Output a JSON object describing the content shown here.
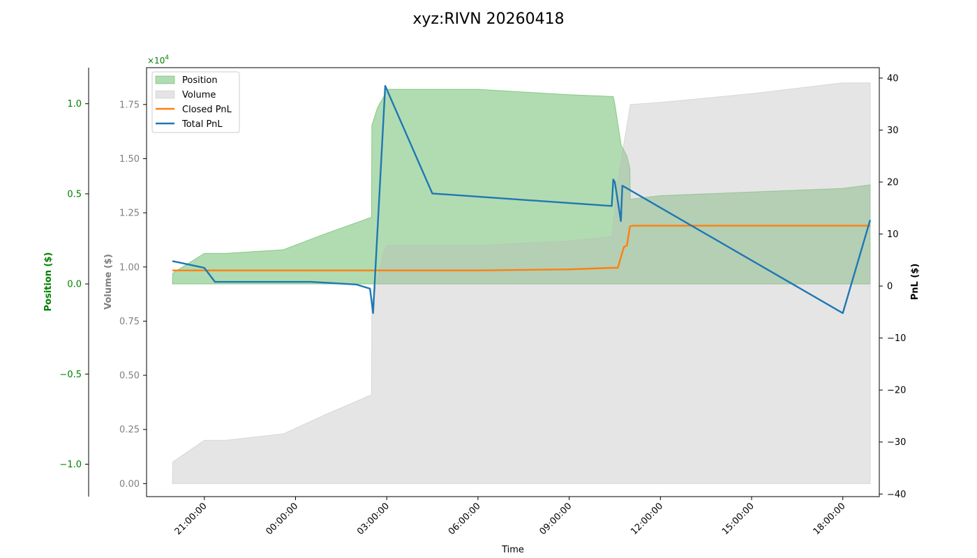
{
  "chart_data": {
    "type": "area",
    "title": "xyz:RIVN 20260418",
    "xlabel": "Time",
    "x_ticks": [
      "21:00:00",
      "00:00:00",
      "03:00:00",
      "06:00:00",
      "09:00:00",
      "12:00:00",
      "15:00:00",
      "18:00:00"
    ],
    "x_tick_hours": [
      21,
      24,
      27,
      30,
      33,
      36,
      39,
      42
    ],
    "x_range_hours": [
      19.1,
      43.2
    ],
    "axes": {
      "position": {
        "label": "Position ($)",
        "color": "#008000",
        "range": [
          -1.18,
          1.2
        ],
        "ticks": [
          -1.0,
          -0.5,
          0.0,
          0.5,
          1.0
        ],
        "tick_labels": [
          "−1.0",
          "−0.5",
          "0.0",
          "0.5",
          "1.0"
        ],
        "multiplier_label": "×10",
        "multiplier_exponent": "4"
      },
      "volume": {
        "label": "Volume ($)",
        "color": "#808080",
        "range": [
          -0.06,
          1.92
        ],
        "ticks": [
          0.0,
          0.25,
          0.5,
          0.75,
          1.0,
          1.25,
          1.5,
          1.75
        ],
        "tick_labels": [
          "0.00",
          "0.25",
          "0.50",
          "0.75",
          "1.00",
          "1.25",
          "1.50",
          "1.75"
        ]
      },
      "pnl": {
        "label": "PnL ($)",
        "color": "#000000",
        "range": [
          -40.5,
          42.0
        ],
        "ticks": [
          -40,
          -30,
          -20,
          -10,
          0,
          10,
          20,
          30,
          40
        ],
        "tick_labels": [
          "−40",
          "−30",
          "−20",
          "−10",
          "0",
          "10",
          "20",
          "30",
          "40"
        ]
      }
    },
    "legend": {
      "placement": "top-left",
      "entries": [
        "Position",
        "Volume",
        "Closed PnL",
        "Total PnL"
      ]
    },
    "series": [
      {
        "name": "Position",
        "kind": "area",
        "axis": "position",
        "color": "#2ca02c",
        "x": [
          19.95,
          19.96,
          21.0,
          21.7,
          23.6,
          25.0,
          26.0,
          26.5,
          26.51,
          26.7,
          27.0,
          27.02,
          30.0,
          33.0,
          34.4,
          34.45,
          34.5,
          34.7,
          34.71,
          34.9,
          35.0,
          35.01,
          36.0,
          39.0,
          42.0,
          42.9
        ],
        "values": [
          0.0,
          0.06,
          0.17,
          0.17,
          0.19,
          0.28,
          0.34,
          0.37,
          0.88,
          0.98,
          1.07,
          1.08,
          1.08,
          1.05,
          1.04,
          1.04,
          1.0,
          0.78,
          0.77,
          0.71,
          0.64,
          0.47,
          0.49,
          0.51,
          0.53,
          0.55
        ]
      },
      {
        "name": "Volume",
        "kind": "area",
        "axis": "volume",
        "color": "#bbbbbb",
        "x": [
          19.95,
          19.96,
          21.0,
          21.7,
          23.6,
          25.0,
          26.0,
          26.5,
          26.51,
          26.9,
          27.02,
          30.0,
          33.0,
          34.4,
          34.6,
          35.01,
          36.0,
          39.0,
          42.0,
          42.9
        ],
        "values": [
          0.0,
          0.1,
          0.2,
          0.2,
          0.23,
          0.32,
          0.38,
          0.41,
          0.83,
          1.07,
          1.1,
          1.1,
          1.12,
          1.14,
          1.4,
          1.75,
          1.76,
          1.8,
          1.85,
          1.85
        ]
      },
      {
        "name": "Closed PnL",
        "kind": "line",
        "axis": "pnl",
        "color": "#ff7f0e",
        "x": [
          19.95,
          24.0,
          27.0,
          30.0,
          33.0,
          34.4,
          34.6,
          34.8,
          34.9,
          35.0,
          35.1,
          39.0,
          42.9
        ],
        "values": [
          3.0,
          3.0,
          3.0,
          3.0,
          3.2,
          3.5,
          3.5,
          7.5,
          7.8,
          11.5,
          11.6,
          11.6,
          11.6
        ]
      },
      {
        "name": "Total PnL",
        "kind": "line",
        "axis": "pnl",
        "color": "#1f77b4",
        "x": [
          19.95,
          21.0,
          21.35,
          24.5,
          26.0,
          26.45,
          26.55,
          26.95,
          28.5,
          34.4,
          34.45,
          34.5,
          34.7,
          34.75,
          42.0,
          42.9
        ],
        "values": [
          4.8,
          3.5,
          0.8,
          0.8,
          0.3,
          -0.5,
          -5.2,
          38.5,
          17.8,
          15.4,
          20.5,
          20.0,
          12.5,
          19.3,
          -5.2,
          12.7
        ]
      }
    ]
  }
}
